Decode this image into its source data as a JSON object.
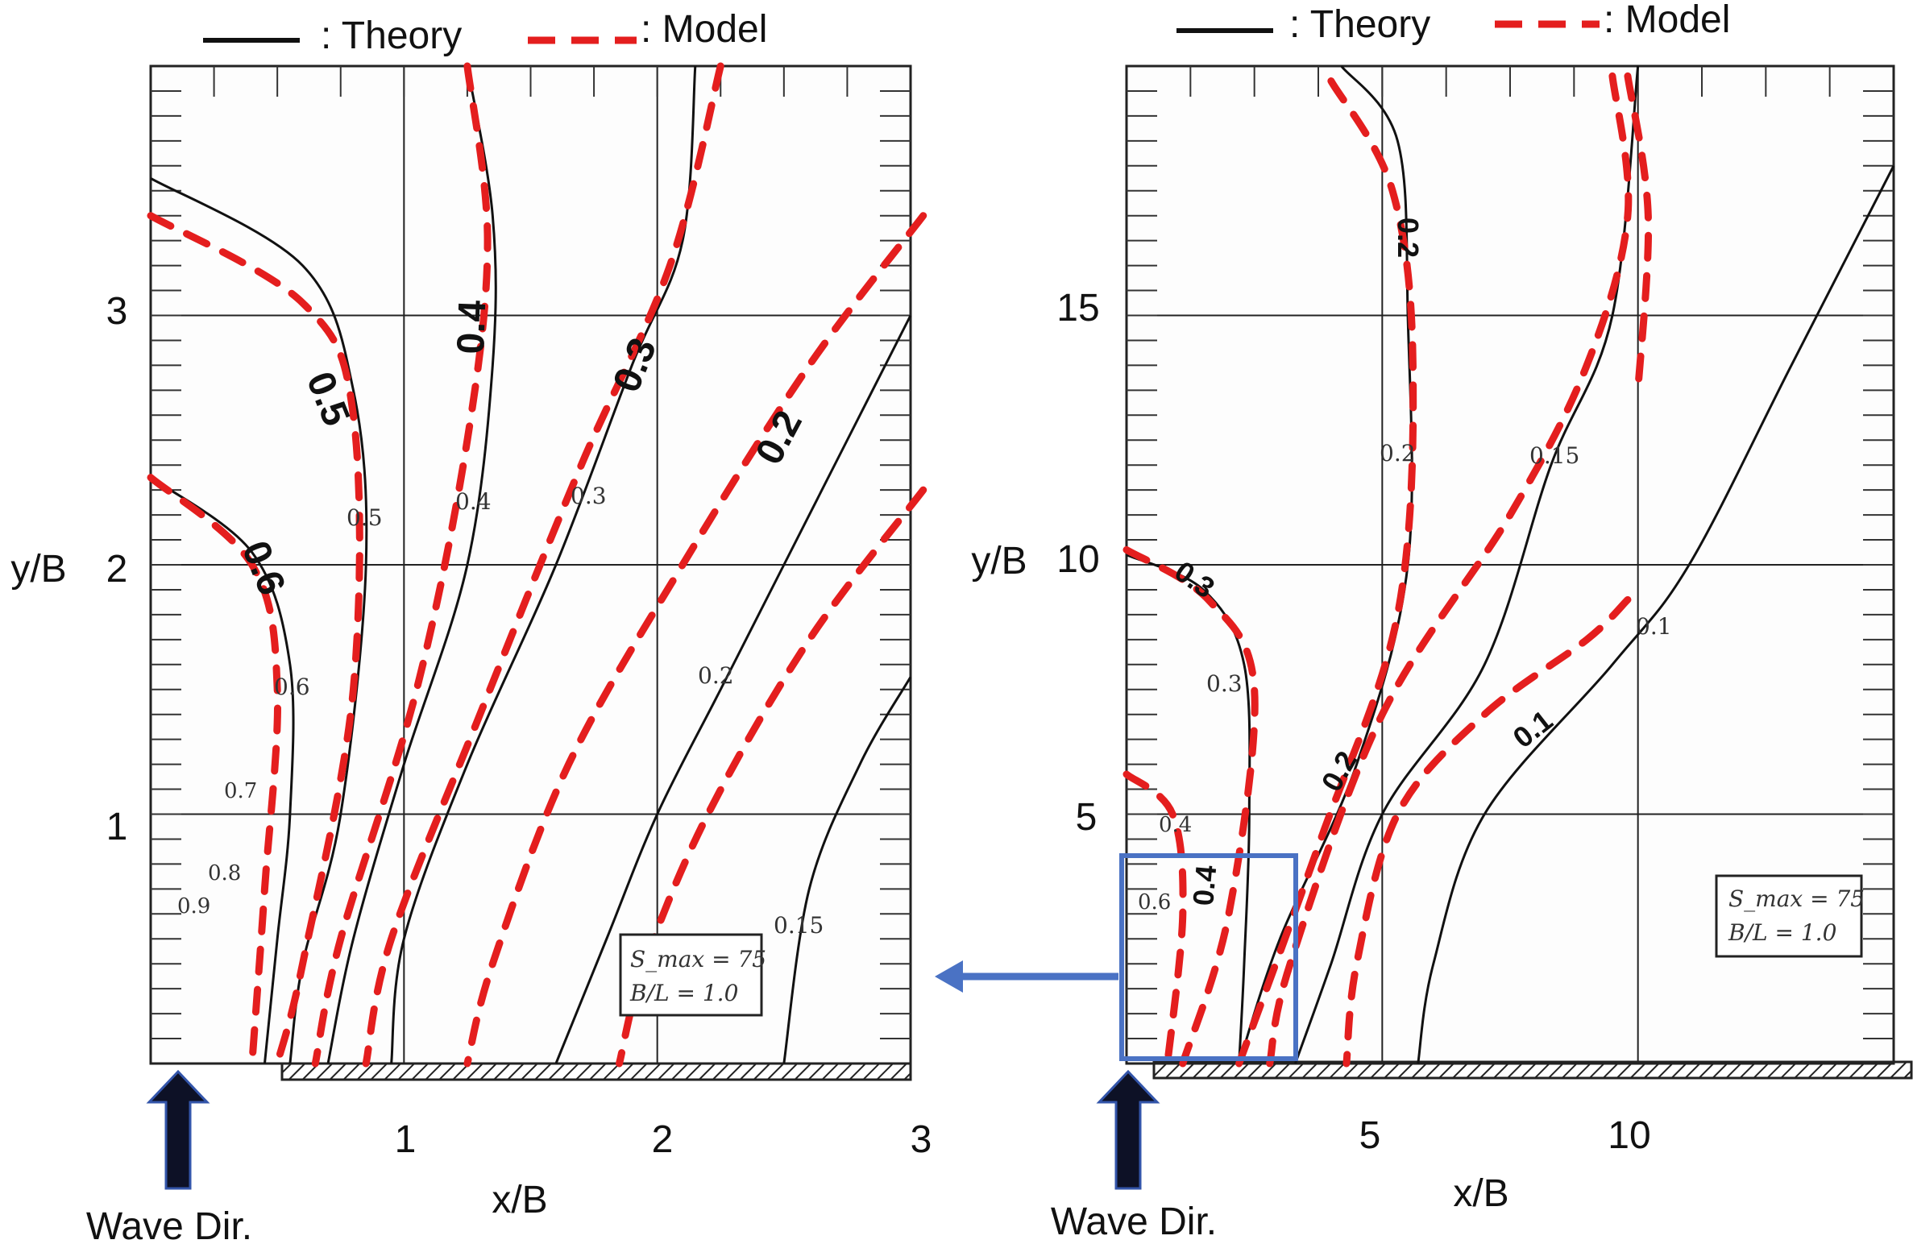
{
  "chart_data": [
    {
      "type": "contour",
      "legend": {
        "theory_label": ": Theory",
        "model_label": ": Model",
        "position": "top"
      },
      "xlabel": "x/B",
      "ylabel": "y/B",
      "xlim": [
        0,
        3
      ],
      "ylim": [
        0,
        4
      ],
      "xticks": [
        "1",
        "2",
        "3"
      ],
      "yticks": [
        "1",
        "2",
        "3"
      ],
      "annotation_1": "S_max = 75",
      "annotation_2": "B/L = 1.0",
      "arrow_label": "Wave Dir.",
      "bold_labels": [
        "0.5",
        "0.4",
        "0.3",
        "0.2",
        "0.6"
      ],
      "small_labels": [
        "0.5",
        "0.4",
        "0.3",
        "0.6",
        "0.2",
        "0.7",
        "0.8",
        "0.9",
        "0.15"
      ],
      "theory_series": [
        {
          "level": 0.5,
          "points": [
            [
              0,
              3.55
            ],
            [
              0.6,
              3.2
            ],
            [
              0.8,
              2.7
            ],
            [
              0.85,
              2.0
            ],
            [
              0.75,
              1.0
            ],
            [
              0.6,
              0.4
            ],
            [
              0.55,
              0
            ]
          ]
        },
        {
          "level": 0.4,
          "points": [
            [
              1.25,
              4
            ],
            [
              1.35,
              3.4
            ],
            [
              1.35,
              2.8
            ],
            [
              1.25,
              2.0
            ],
            [
              1.0,
              1.2
            ],
            [
              0.8,
              0.5
            ],
            [
              0.7,
              0
            ]
          ]
        },
        {
          "level": 0.3,
          "points": [
            [
              2.15,
              4
            ],
            [
              2.1,
              3.3
            ],
            [
              1.9,
              2.8
            ],
            [
              1.6,
              2.0
            ],
            [
              1.25,
              1.2
            ],
            [
              1.0,
              0.5
            ],
            [
              0.95,
              0
            ]
          ]
        },
        {
          "level": 0.2,
          "points": [
            [
              3,
              3.0
            ],
            [
              2.75,
              2.5
            ],
            [
              2.5,
              2.0
            ],
            [
              2.25,
              1.5
            ],
            [
              2.0,
              1.0
            ],
            [
              1.8,
              0.5
            ],
            [
              1.6,
              0
            ]
          ]
        },
        {
          "level": 0.6,
          "points": [
            [
              0,
              2.35
            ],
            [
              0.4,
              2.05
            ],
            [
              0.55,
              1.6
            ],
            [
              0.55,
              1.0
            ],
            [
              0.5,
              0.5
            ],
            [
              0.45,
              0
            ]
          ]
        },
        {
          "level": 0.15,
          "points": [
            [
              3,
              1.55
            ],
            [
              2.8,
              1.2
            ],
            [
              2.6,
              0.7
            ],
            [
              2.5,
              0
            ]
          ]
        }
      ],
      "model_series": [
        {
          "level": 0.5,
          "points": [
            [
              0,
              3.4
            ],
            [
              0.6,
              3.05
            ],
            [
              0.8,
              2.6
            ],
            [
              0.8,
              1.5
            ],
            [
              0.6,
              0.4
            ],
            [
              0.5,
              0
            ]
          ]
        },
        {
          "level": 0.4,
          "points": [
            [
              1.25,
              4
            ],
            [
              1.33,
              3.3
            ],
            [
              1.25,
              2.5
            ],
            [
              1.05,
              1.5
            ],
            [
              0.75,
              0.5
            ],
            [
              0.65,
              0
            ]
          ]
        },
        {
          "level": 0.3,
          "points": [
            [
              2.25,
              4
            ],
            [
              2.05,
              3.2
            ],
            [
              1.7,
              2.4
            ],
            [
              1.3,
              1.4
            ],
            [
              0.95,
              0.5
            ],
            [
              0.85,
              0
            ]
          ]
        },
        {
          "level": 0.2,
          "points": [
            [
              3.05,
              3.4
            ],
            [
              2.6,
              2.8
            ],
            [
              2.1,
              2.0
            ],
            [
              1.65,
              1.2
            ],
            [
              1.35,
              0.4
            ],
            [
              1.25,
              0
            ]
          ]
        },
        {
          "level": 0.6,
          "points": [
            [
              0,
              2.35
            ],
            [
              0.4,
              2.0
            ],
            [
              0.5,
              1.5
            ],
            [
              0.45,
              0.7
            ],
            [
              0.4,
              0
            ]
          ]
        },
        {
          "level": 0.15,
          "points": [
            [
              3.05,
              2.3
            ],
            [
              2.6,
              1.7
            ],
            [
              2.2,
              1.0
            ],
            [
              1.95,
              0.4
            ],
            [
              1.85,
              0
            ]
          ]
        }
      ]
    },
    {
      "type": "contour",
      "legend": {
        "theory_label": ": Theory",
        "model_label": ": Model",
        "position": "top"
      },
      "xlabel": "x/B",
      "ylabel": "y/B",
      "xlim": [
        0,
        15
      ],
      "ylim": [
        0,
        20
      ],
      "xticks": [
        "5",
        "10"
      ],
      "yticks": [
        "5",
        "10",
        "15"
      ],
      "annotation_1": "S_max = 75",
      "annotation_2": "B/L = 1.0",
      "arrow_label": "Wave Dir.",
      "bold_labels": [
        "0.2",
        "0.3",
        "0.2",
        "0.1",
        "0.4"
      ],
      "small_labels": [
        "0.2",
        "0.15",
        "0.1",
        "0.3",
        "0.4",
        "0.6"
      ],
      "theory_series": [
        {
          "level": 0.2,
          "points": [
            [
              4.2,
              20
            ],
            [
              5.3,
              18.5
            ],
            [
              5.5,
              15
            ],
            [
              5.5,
              10
            ],
            [
              4.5,
              6
            ],
            [
              3,
              2.5
            ],
            [
              2.2,
              0
            ]
          ]
        },
        {
          "level": 0.15,
          "points": [
            [
              10,
              20
            ],
            [
              9.5,
              15
            ],
            [
              8.3,
              12
            ],
            [
              7,
              8
            ],
            [
              5,
              5
            ],
            [
              4,
              2
            ],
            [
              3.3,
              0
            ]
          ]
        },
        {
          "level": 0.1,
          "points": [
            [
              15,
              18
            ],
            [
              13,
              14
            ],
            [
              11,
              10
            ],
            [
              9.5,
              8
            ],
            [
              7,
              5
            ],
            [
              6,
              2
            ],
            [
              5.7,
              0
            ]
          ]
        },
        {
          "level": 0.3,
          "points": [
            [
              0,
              10.2
            ],
            [
              1.5,
              9.5
            ],
            [
              2.3,
              8.0
            ],
            [
              2.4,
              5
            ],
            [
              2.3,
              2
            ],
            [
              2.2,
              0
            ]
          ]
        }
      ],
      "model_series": [
        {
          "level": 0.2,
          "points": [
            [
              4,
              19.7
            ],
            [
              5.2,
              17.5
            ],
            [
              5.6,
              14
            ],
            [
              5.3,
              9
            ],
            [
              3.8,
              4.5
            ],
            [
              2.2,
              0
            ]
          ]
        },
        {
          "level": 0.15,
          "points": [
            [
              9.5,
              19.8
            ],
            [
              9.8,
              17
            ],
            [
              9,
              14
            ],
            [
              7.5,
              11
            ],
            [
              5,
              7
            ],
            [
              3.2,
              2
            ],
            [
              2.8,
              0
            ]
          ]
        },
        {
          "level": 0.1,
          "points": [
            [
              9.8,
              19.8
            ],
            [
              10.2,
              17
            ],
            [
              10,
              13.5
            ]
          ]
        },
        {
          "level": 0.1,
          "points": [
            [
              9.8,
              9.3
            ],
            [
              9,
              8.5
            ],
            [
              7,
              7
            ],
            [
              5.3,
              5
            ],
            [
              4.5,
              2
            ],
            [
              4.3,
              0
            ]
          ]
        },
        {
          "level": 0.3,
          "points": [
            [
              0,
              10.3
            ],
            [
              1.6,
              9.3
            ],
            [
              2.5,
              7.5
            ],
            [
              2.0,
              3.0
            ],
            [
              1.1,
              0
            ]
          ]
        },
        {
          "level": 0.4,
          "points": [
            [
              0,
              5.8
            ],
            [
              0.9,
              5.0
            ],
            [
              1.1,
              3
            ],
            [
              0.8,
              0
            ]
          ]
        }
      ]
    }
  ]
}
